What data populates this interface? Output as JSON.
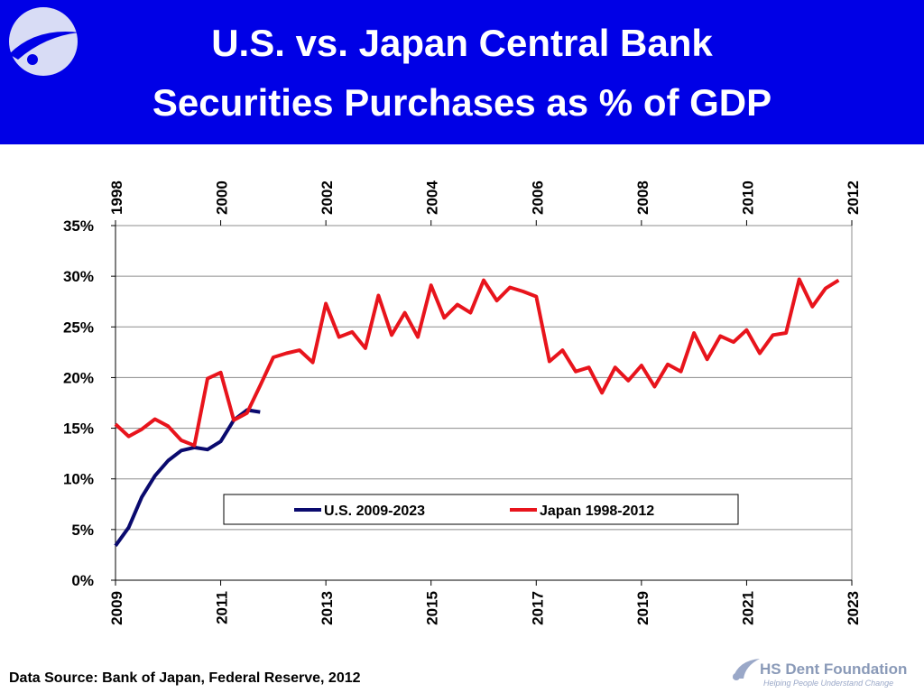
{
  "chart_data": {
    "type": "line",
    "title": [
      "U.S. vs. Japan Central Bank",
      "Securities Purchases as % of GDP"
    ],
    "source": "Data Source: Bank of Japan, Federal Reserve, 2012",
    "brand": "HS Dent Foundation",
    "tagline": "Helping People Understand Change",
    "xlim": [
      2009,
      2023
    ],
    "xticks": [
      2009,
      2011,
      2013,
      2015,
      2017,
      2019,
      2021,
      2023
    ],
    "x2lim": [
      1998,
      2012
    ],
    "x2ticks": [
      1998,
      2000,
      2002,
      2004,
      2006,
      2008,
      2010,
      2012
    ],
    "ylim": [
      0,
      35
    ],
    "yticks": [
      {
        "value": 0,
        "label": "0%"
      },
      {
        "value": 5,
        "label": "5%"
      },
      {
        "value": 10,
        "label": "10%"
      },
      {
        "value": 15,
        "label": "15%"
      },
      {
        "value": 20,
        "label": "20%"
      },
      {
        "value": 25,
        "label": "25%"
      },
      {
        "value": 30,
        "label": "30%"
      },
      {
        "value": 35,
        "label": "35%"
      }
    ],
    "grid": true,
    "series": [
      {
        "name": "U.S. 2009-2023",
        "color": "#0a0a6e",
        "x": [
          2009,
          2009.25,
          2009.5,
          2009.75,
          2010,
          2010.25,
          2010.5,
          2010.75,
          2011,
          2011.25,
          2011.5,
          2011.75
        ],
        "values": [
          3.4,
          5.2,
          8.2,
          10.3,
          11.8,
          12.8,
          13.1,
          12.9,
          13.7,
          15.8,
          16.8,
          16.6
        ]
      },
      {
        "name": "Japan 1998-2012",
        "color": "#e8141c",
        "axis": "x2",
        "x": [
          1998,
          1998.25,
          1998.5,
          1998.75,
          1999,
          1999.25,
          1999.5,
          1999.75,
          2000,
          2000.25,
          2000.5,
          2000.75,
          2001,
          2001.25,
          2001.5,
          2001.75,
          2002,
          2002.25,
          2002.5,
          2002.75,
          2003,
          2003.25,
          2003.5,
          2003.75,
          2004,
          2004.25,
          2004.5,
          2004.75,
          2005,
          2005.25,
          2005.5,
          2005.75,
          2006,
          2006.25,
          2006.5,
          2006.75,
          2007,
          2007.25,
          2007.5,
          2007.75,
          2008,
          2008.25,
          2008.5,
          2008.75,
          2009,
          2009.25,
          2009.5,
          2009.75,
          2010,
          2010.25,
          2010.5,
          2010.75,
          2011,
          2011.25,
          2011.5,
          2011.75
        ],
        "values": [
          15.4,
          14.2,
          14.9,
          15.9,
          15.2,
          13.8,
          13.3,
          19.9,
          20.5,
          15.8,
          16.5,
          19.2,
          22.0,
          22.4,
          22.7,
          21.5,
          27.3,
          24.0,
          24.5,
          22.9,
          28.1,
          24.2,
          26.4,
          24.0,
          29.1,
          25.9,
          27.2,
          26.4,
          29.6,
          27.6,
          28.9,
          28.5,
          28.0,
          21.6,
          22.7,
          20.6,
          21.0,
          18.5,
          21.0,
          19.7,
          21.2,
          19.1,
          21.3,
          20.6,
          24.4,
          21.8,
          24.1,
          23.5,
          24.7,
          22.4,
          24.2,
          24.4,
          29.7,
          27.0,
          28.8,
          29.6
        ]
      }
    ]
  }
}
